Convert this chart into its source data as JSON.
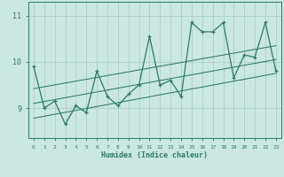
{
  "xlabel": "Humidex (Indice chaleur)",
  "ylabel": "",
  "bg_color": "#cae8e0",
  "line_color": "#2d7a65",
  "grid_color": "#aad0c8",
  "x_data": [
    0,
    1,
    2,
    3,
    4,
    5,
    6,
    7,
    8,
    9,
    10,
    11,
    12,
    13,
    14,
    15,
    16,
    17,
    18,
    19,
    20,
    21,
    22,
    23
  ],
  "y_data": [
    9.9,
    9.0,
    9.15,
    8.65,
    9.05,
    8.9,
    9.8,
    9.25,
    9.05,
    9.3,
    9.5,
    10.55,
    9.5,
    9.6,
    9.25,
    10.85,
    10.65,
    10.65,
    10.85,
    9.65,
    10.15,
    10.1,
    10.85,
    9.8
  ],
  "regression_lines": [
    {
      "x": [
        0,
        23
      ],
      "y": [
        8.78,
        9.75
      ]
    },
    {
      "x": [
        0,
        23
      ],
      "y": [
        9.1,
        10.05
      ]
    },
    {
      "x": [
        0,
        23
      ],
      "y": [
        9.42,
        10.35
      ]
    }
  ],
  "ylim": [
    8.35,
    11.3
  ],
  "xlim": [
    -0.5,
    23.5
  ],
  "yticks": [
    9,
    10,
    11
  ],
  "xticks": [
    0,
    1,
    2,
    3,
    4,
    5,
    6,
    7,
    8,
    9,
    10,
    11,
    12,
    13,
    14,
    15,
    16,
    17,
    18,
    19,
    20,
    21,
    22,
    23
  ]
}
